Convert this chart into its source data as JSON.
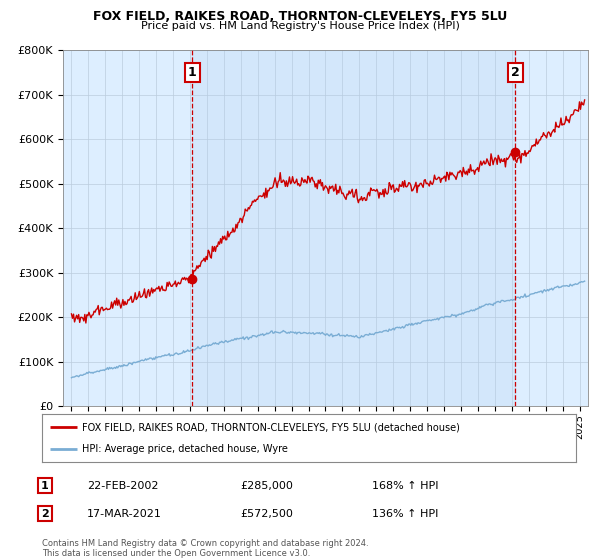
{
  "title": "FOX FIELD, RAIKES ROAD, THORNTON-CLEVELEYS, FY5 5LU",
  "subtitle": "Price paid vs. HM Land Registry's House Price Index (HPI)",
  "ylabel_ticks": [
    "£0",
    "£100K",
    "£200K",
    "£300K",
    "£400K",
    "£500K",
    "£600K",
    "£700K",
    "£800K"
  ],
  "ylim": [
    0,
    800000
  ],
  "ytick_vals": [
    0,
    100000,
    200000,
    300000,
    400000,
    500000,
    600000,
    700000,
    800000
  ],
  "sale1_date": 2002.13,
  "sale1_price": 285000,
  "sale1_label": "1",
  "sale2_date": 2021.21,
  "sale2_price": 572500,
  "sale2_label": "2",
  "legend_red": "FOX FIELD, RAIKES ROAD, THORNTON-CLEVELEYS, FY5 5LU (detached house)",
  "legend_blue": "HPI: Average price, detached house, Wyre",
  "table_rows": [
    [
      "1",
      "22-FEB-2002",
      "£285,000",
      "168% ↑ HPI"
    ],
    [
      "2",
      "17-MAR-2021",
      "£572,500",
      "136% ↑ HPI"
    ]
  ],
  "footnote": "Contains HM Land Registry data © Crown copyright and database right 2024.\nThis data is licensed under the Open Government Licence v3.0.",
  "red_color": "#cc0000",
  "blue_color": "#7aadd4",
  "bg_plot": "#ddeeff",
  "background_color": "#ffffff",
  "xlim_start": 1994.5,
  "xlim_end": 2025.5,
  "xtick_years": [
    1995,
    1996,
    1997,
    1998,
    1999,
    2000,
    2001,
    2002,
    2003,
    2004,
    2005,
    2006,
    2007,
    2008,
    2009,
    2010,
    2011,
    2012,
    2013,
    2014,
    2015,
    2016,
    2017,
    2018,
    2019,
    2020,
    2021,
    2022,
    2023,
    2024,
    2025
  ]
}
